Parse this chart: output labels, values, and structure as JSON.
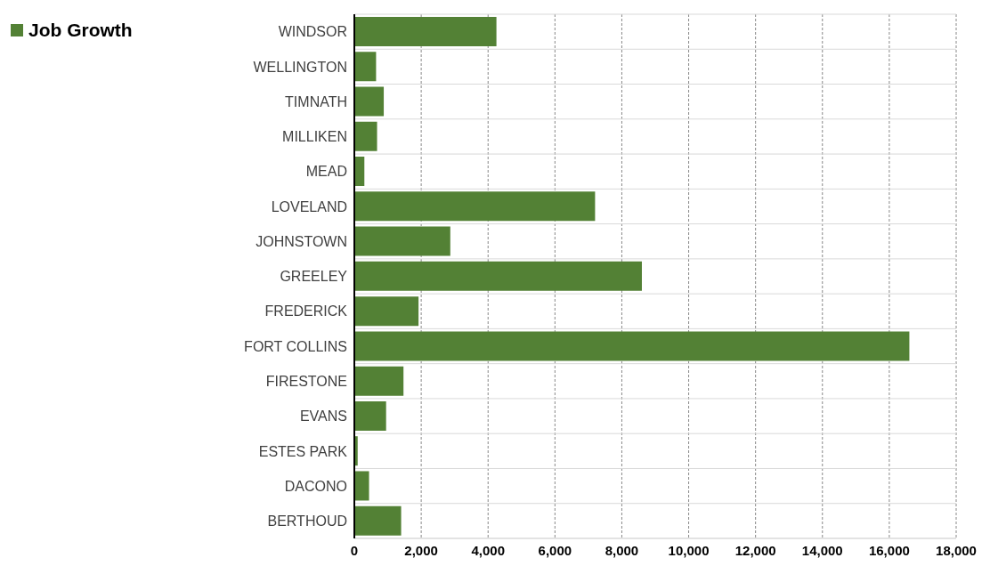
{
  "chart_data": {
    "type": "bar",
    "orientation": "horizontal",
    "categories": [
      "WINDSOR",
      "WELLINGTON",
      "TIMNATH",
      "MILLIKEN",
      "MEAD",
      "LOVELAND",
      "JOHNSTOWN",
      "GREELEY",
      "FREDERICK",
      "FORT COLLINS",
      "FIRESTONE",
      "EVANS",
      "ESTES PARK",
      "DACONO",
      "BERTHOUD"
    ],
    "series": [
      {
        "name": "Job Growth",
        "color": "#538135",
        "values": [
          4250,
          650,
          880,
          680,
          300,
          7200,
          2870,
          8600,
          1920,
          16600,
          1470,
          950,
          100,
          440,
          1400
        ]
      }
    ],
    "xlim": [
      0,
      18000
    ],
    "xticks": [
      0,
      {
        "value": 2000,
        "label": "2,000"
      },
      {
        "value": 4000,
        "label": "4,000"
      },
      {
        "value": 6000,
        "label": "6,000"
      },
      {
        "value": 8000,
        "label": "8,000"
      },
      {
        "value": 10000,
        "label": "10,000"
      },
      {
        "value": 12000,
        "label": "12,000"
      },
      {
        "value": 14000,
        "label": "14,000"
      },
      {
        "value": 16000,
        "label": "16,000"
      },
      {
        "value": 18000,
        "label": "18,000"
      }
    ],
    "grid": true,
    "legend": "top left"
  }
}
